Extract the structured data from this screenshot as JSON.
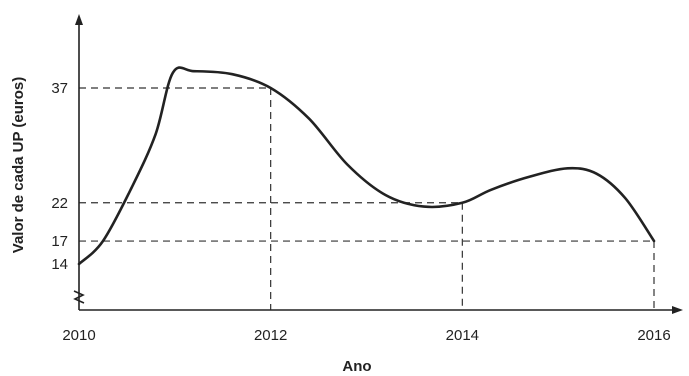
{
  "chart_data": {
    "type": "line",
    "title": "",
    "xlabel": "Ano",
    "ylabel": "Valor de cada UP (euros)",
    "x_ticks": [
      "2010",
      "2012",
      "2014",
      "2016"
    ],
    "y_ticks": [
      "14",
      "17",
      "22",
      "37"
    ],
    "xlim": [
      2010,
      2016.3
    ],
    "ylim": [
      14,
      44
    ],
    "y_axis_break": true,
    "grid": false,
    "series": [
      {
        "name": "",
        "points": [
          [
            2010,
            14
          ],
          [
            2010.25,
            17
          ],
          [
            2010.55,
            24
          ],
          [
            2010.8,
            31
          ],
          [
            2010.98,
            39
          ],
          [
            2011.2,
            39.2
          ],
          [
            2011.6,
            38.8
          ],
          [
            2012.0,
            37
          ],
          [
            2012.4,
            33
          ],
          [
            2012.8,
            27
          ],
          [
            2013.2,
            23
          ],
          [
            2013.6,
            21.5
          ],
          [
            2014.0,
            22
          ],
          [
            2014.3,
            23.7
          ],
          [
            2014.7,
            25.4
          ],
          [
            2015.1,
            26.5
          ],
          [
            2015.4,
            25.8
          ],
          [
            2015.7,
            22.6
          ],
          [
            2016.0,
            17
          ]
        ]
      }
    ],
    "guides": [
      {
        "x": 2012,
        "y": 37
      },
      {
        "x": 2014,
        "y": 22
      },
      {
        "x": 2016,
        "y": 17
      }
    ]
  }
}
